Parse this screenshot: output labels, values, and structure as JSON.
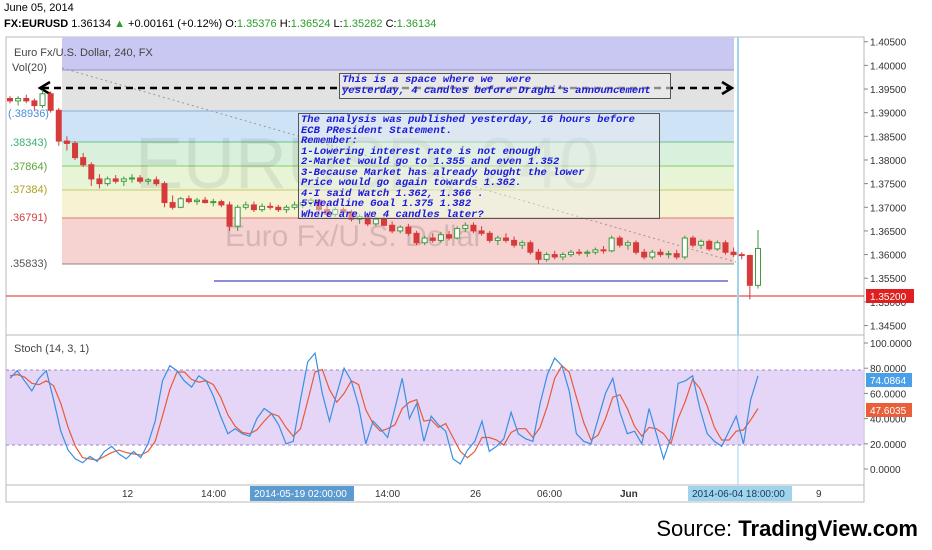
{
  "header": {
    "date": "June 05, 2014",
    "symbol": "FX:EURUSD",
    "last": "1.36134",
    "change": "+0.00161 (+0.12%)",
    "ohlc": [
      {
        "k": "O:",
        "v": "1.35376"
      },
      {
        "k": "H:",
        "v": "1.36524"
      },
      {
        "k": "L:",
        "v": "1.35282"
      },
      {
        "k": "C:",
        "v": "1.36134"
      }
    ]
  },
  "main_pane": {
    "title": "Euro Fx/U.S. Dollar, 240, FX",
    "vol_label": "Vol(20)",
    "watermark_symbol": "EURUSD, 240",
    "watermark_name": "Euro Fx/U.S. Dollar",
    "fib_labels": [
      "(.38936)",
      ".38343)",
      ".37864)",
      ".37384)",
      ".36791)",
      ".35833)"
    ],
    "price_ticks": [
      "1.40500",
      "1.40000",
      "1.39500",
      "1.39000",
      "1.38500",
      "1.38000",
      "1.37500",
      "1.37000",
      "1.36500",
      "1.36000",
      "1.35500",
      "1.35000",
      "1.34500"
    ],
    "current_price_label": "1.35200",
    "annotation_top": [
      "This is a space where we  were",
      "yesterday, 4 candles before Draghi's announcement"
    ],
    "annotation_main": [
      "The analysis was published yesterday, 16 hours before",
      "ECB PResident Statement.",
      "Remember:",
      "1-Lowering interest rate is not enough",
      "2-Market would go to 1.355 and even 1.352",
      "3-Because Market has already bought the lower",
      "Price would go again towards 1.362.",
      "4-I said Watch 1.362, 1.366 .",
      "5-Headline Goal 1.375 1.382",
      "Where are we 4 candles later?"
    ]
  },
  "stoch_pane": {
    "title": "Stoch (14, 3, 1)",
    "ticks": [
      "100.0000",
      "80.0000",
      "60.0000",
      "40.0000",
      "20.0000",
      "0.0000"
    ],
    "k_label": "74.0864",
    "d_label": "47.6035"
  },
  "x_axis": {
    "ticks": [
      "12",
      "14:00",
      "14:00",
      "26",
      "06:00",
      "Jun",
      "9"
    ],
    "highlight_left": "2014-05-19 02:00:00",
    "highlight_right": "2014-06-04 18:00:00"
  },
  "source": {
    "prefix": "Source: ",
    "brand": "TradingView.com"
  },
  "colors": {
    "up_candle": "#3f9a3f",
    "down_candle": "#d63b3b",
    "stoch_k": "#3a8fe0",
    "stoch_d": "#e85a3a",
    "price_line": "#e02020",
    "k_label_bg": "#4aa0e8",
    "d_label_bg": "#e8603a",
    "stoch_band": "#dcc8f6"
  },
  "chart_data": {
    "type": "candlestick",
    "symbol": "FX:EURUSD",
    "interval": "240",
    "ylim": [
      1.343,
      1.406
    ],
    "fib_levels": [
      1.38936,
      1.38343,
      1.37864,
      1.37384,
      1.36791,
      1.35833
    ],
    "horizontal_line": 1.3535,
    "current_price": 1.352,
    "candles": [
      [
        1.393,
        1.3935,
        1.392,
        1.3925
      ],
      [
        1.3925,
        1.3935,
        1.3915,
        1.393
      ],
      [
        1.393,
        1.3938,
        1.392,
        1.3925
      ],
      [
        1.3925,
        1.393,
        1.3905,
        1.3915
      ],
      [
        1.3915,
        1.3948,
        1.391,
        1.394
      ],
      [
        1.394,
        1.3945,
        1.39,
        1.3905
      ],
      [
        1.3905,
        1.391,
        1.383,
        1.384
      ],
      [
        1.384,
        1.385,
        1.382,
        1.3835
      ],
      [
        1.3835,
        1.384,
        1.38,
        1.3805
      ],
      [
        1.3805,
        1.3815,
        1.3785,
        1.379
      ],
      [
        1.379,
        1.3795,
        1.3745,
        1.376
      ],
      [
        1.376,
        1.377,
        1.374,
        1.375
      ],
      [
        1.375,
        1.3765,
        1.3745,
        1.376
      ],
      [
        1.376,
        1.3768,
        1.375,
        1.3755
      ],
      [
        1.3755,
        1.3765,
        1.3745,
        1.376
      ],
      [
        1.376,
        1.377,
        1.3752,
        1.3762
      ],
      [
        1.3762,
        1.3768,
        1.375,
        1.3755
      ],
      [
        1.3755,
        1.3762,
        1.3748,
        1.3758
      ],
      [
        1.3758,
        1.3765,
        1.3745,
        1.375
      ],
      [
        1.375,
        1.3755,
        1.37,
        1.371
      ],
      [
        1.371,
        1.3725,
        1.3695,
        1.37
      ],
      [
        1.37,
        1.3722,
        1.3698,
        1.3718
      ],
      [
        1.3718,
        1.3725,
        1.3708,
        1.3712
      ],
      [
        1.3712,
        1.372,
        1.3705,
        1.3715
      ],
      [
        1.3715,
        1.3722,
        1.3708,
        1.371
      ],
      [
        1.371,
        1.3718,
        1.3702,
        1.3712
      ],
      [
        1.3712,
        1.3716,
        1.37,
        1.3705
      ],
      [
        1.3705,
        1.3712,
        1.365,
        1.366
      ],
      [
        1.366,
        1.3705,
        1.365,
        1.37
      ],
      [
        1.37,
        1.3712,
        1.3695,
        1.3705
      ],
      [
        1.3705,
        1.3712,
        1.369,
        1.3695
      ],
      [
        1.3695,
        1.3708,
        1.369,
        1.3702
      ],
      [
        1.3702,
        1.371,
        1.3695,
        1.37
      ],
      [
        1.37,
        1.3705,
        1.369,
        1.3695
      ],
      [
        1.3695,
        1.3705,
        1.3688,
        1.37
      ],
      [
        1.37,
        1.3712,
        1.3695,
        1.3705
      ],
      [
        1.3705,
        1.3715,
        1.3698,
        1.371
      ],
      [
        1.371,
        1.372,
        1.3702,
        1.3715
      ],
      [
        1.3715,
        1.3718,
        1.369,
        1.3695
      ],
      [
        1.3695,
        1.3705,
        1.368,
        1.3685
      ],
      [
        1.3685,
        1.37,
        1.368,
        1.3695
      ],
      [
        1.3695,
        1.37,
        1.3685,
        1.369
      ],
      [
        1.369,
        1.3695,
        1.367,
        1.3675
      ],
      [
        1.3675,
        1.3685,
        1.3665,
        1.368
      ],
      [
        1.368,
        1.3685,
        1.366,
        1.3665
      ],
      [
        1.3665,
        1.368,
        1.366,
        1.3675
      ],
      [
        1.3675,
        1.3685,
        1.366,
        1.3662
      ],
      [
        1.3662,
        1.367,
        1.3645,
        1.365
      ],
      [
        1.365,
        1.3662,
        1.3645,
        1.3658
      ],
      [
        1.3658,
        1.3665,
        1.364,
        1.3645
      ],
      [
        1.3645,
        1.365,
        1.362,
        1.3625
      ],
      [
        1.3625,
        1.364,
        1.362,
        1.3635
      ],
      [
        1.3635,
        1.3645,
        1.3625,
        1.363
      ],
      [
        1.363,
        1.3648,
        1.3625,
        1.3642
      ],
      [
        1.3642,
        1.365,
        1.363,
        1.3635
      ],
      [
        1.3635,
        1.366,
        1.3632,
        1.3655
      ],
      [
        1.3655,
        1.3668,
        1.3648,
        1.3662
      ],
      [
        1.3662,
        1.3668,
        1.3645,
        1.365
      ],
      [
        1.365,
        1.366,
        1.364,
        1.3645
      ],
      [
        1.3645,
        1.365,
        1.3625,
        1.363
      ],
      [
        1.363,
        1.364,
        1.362,
        1.3635
      ],
      [
        1.3635,
        1.3645,
        1.3625,
        1.363
      ],
      [
        1.363,
        1.3638,
        1.3615,
        1.362
      ],
      [
        1.362,
        1.363,
        1.3612,
        1.3625
      ],
      [
        1.3625,
        1.363,
        1.36,
        1.3605
      ],
      [
        1.3605,
        1.3612,
        1.358,
        1.359
      ],
      [
        1.359,
        1.3605,
        1.3585,
        1.36
      ],
      [
        1.36,
        1.3608,
        1.359,
        1.3595
      ],
      [
        1.3595,
        1.3605,
        1.3588,
        1.36
      ],
      [
        1.36,
        1.361,
        1.3595,
        1.3605
      ],
      [
        1.3605,
        1.3612,
        1.3598,
        1.3603
      ],
      [
        1.3603,
        1.361,
        1.3595,
        1.3605
      ],
      [
        1.3605,
        1.3615,
        1.36,
        1.361
      ],
      [
        1.361,
        1.3618,
        1.3602,
        1.3608
      ],
      [
        1.3608,
        1.364,
        1.3605,
        1.3635
      ],
      [
        1.3635,
        1.364,
        1.3615,
        1.362
      ],
      [
        1.362,
        1.363,
        1.361,
        1.3625
      ],
      [
        1.3625,
        1.363,
        1.36,
        1.3605
      ],
      [
        1.3605,
        1.3612,
        1.359,
        1.3595
      ],
      [
        1.3595,
        1.361,
        1.359,
        1.3605
      ],
      [
        1.3605,
        1.3612,
        1.3595,
        1.36
      ],
      [
        1.36,
        1.3608,
        1.3592,
        1.3602
      ],
      [
        1.3602,
        1.361,
        1.359,
        1.3595
      ],
      [
        1.3595,
        1.364,
        1.359,
        1.3635
      ],
      [
        1.3635,
        1.364,
        1.3615,
        1.362
      ],
      [
        1.362,
        1.3632,
        1.3612,
        1.3628
      ],
      [
        1.3628,
        1.3632,
        1.3608,
        1.3612
      ],
      [
        1.3612,
        1.363,
        1.3608,
        1.3625
      ],
      [
        1.3625,
        1.363,
        1.36,
        1.3605
      ],
      [
        1.3605,
        1.3615,
        1.3595,
        1.36
      ],
      [
        1.36,
        1.3605,
        1.359,
        1.3598
      ],
      [
        1.3598,
        1.36,
        1.3505,
        1.3535
      ],
      [
        1.3535,
        1.3652,
        1.3528,
        1.3613
      ]
    ]
  }
}
